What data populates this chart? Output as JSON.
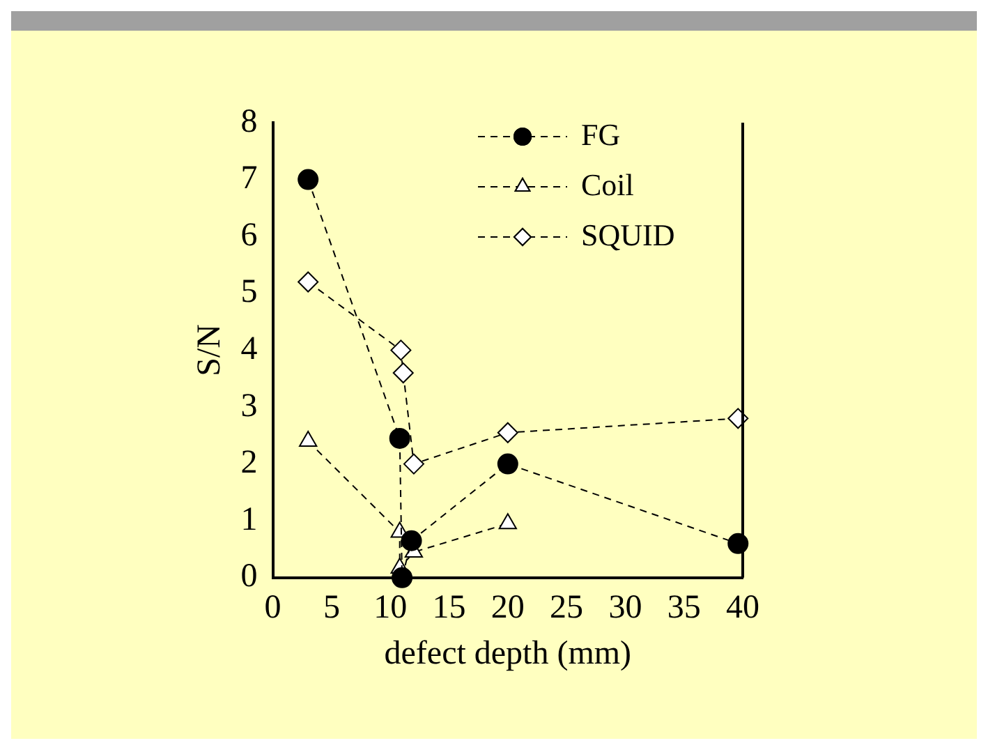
{
  "chart_data": {
    "type": "line",
    "xlabel": "defect depth (mm)",
    "ylabel": "S/N",
    "xlim": [
      0,
      40
    ],
    "xticks": [
      0,
      5,
      10,
      15,
      20,
      25,
      30,
      35,
      40
    ],
    "ylim": [
      0,
      8
    ],
    "yticks": [
      0,
      1,
      2,
      3,
      4,
      5,
      6,
      7,
      8
    ],
    "grid": false,
    "legend": "top right",
    "line_style": "dashed",
    "series": [
      {
        "name": "FG",
        "color": "#000000",
        "marker": "circle",
        "x": [
          3,
          10.8,
          11,
          11.8,
          20,
          39.6
        ],
        "values": [
          7,
          2.45,
          0,
          0.65,
          2,
          0.6
        ]
      },
      {
        "name": "Coil",
        "color": "#000000",
        "marker": "triangle",
        "x": [
          3,
          10.8,
          10.8,
          12,
          20
        ],
        "values": [
          2.4,
          0.8,
          0.17,
          0.45,
          0.95
        ]
      },
      {
        "name": "SQUID",
        "color": "#000000",
        "marker": "diamond",
        "x": [
          3,
          10.9,
          11.1,
          12,
          20,
          39.6
        ],
        "values": [
          5.2,
          4,
          3.6,
          2,
          2.55,
          2.8
        ]
      }
    ]
  }
}
